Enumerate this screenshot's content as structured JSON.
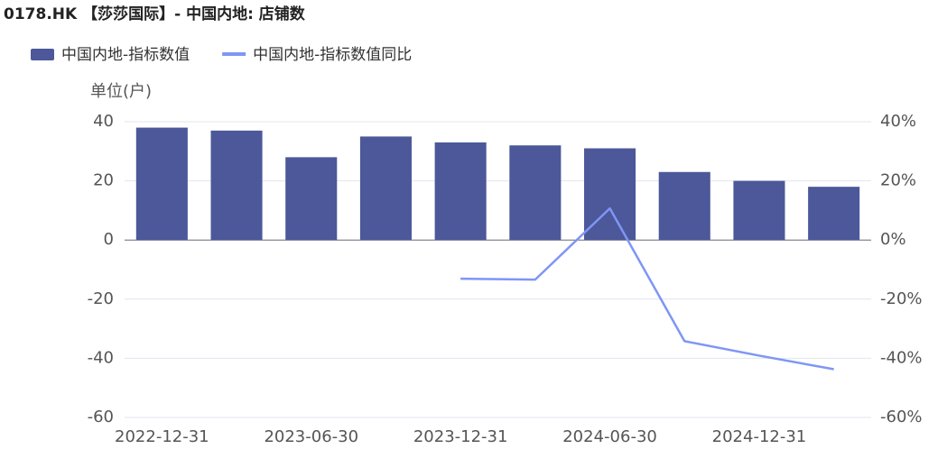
{
  "chart_data": {
    "type": "bar_line",
    "title": "0178.HK 【莎莎国际】- 中国内地: 店铺数",
    "y_label": "单位(户)",
    "categories": [
      "2022-12-31",
      null,
      "2023-06-30",
      null,
      "2023-12-31",
      null,
      "2024-06-30",
      null,
      "2024-12-31",
      null
    ],
    "series": [
      {
        "name": "中国内地-指标数值",
        "color": "#4c5899",
        "type": "bar",
        "values": [
          38,
          37,
          28,
          35,
          33,
          32,
          31,
          23,
          20,
          18
        ]
      },
      {
        "name": "中国内地-指标数值同比",
        "color": "#7f96f5",
        "type": "line",
        "axis": "y2",
        "values": [
          null,
          null,
          null,
          null,
          -13.1,
          -13.4,
          10.7,
          -34.2,
          -39.1,
          -43.7
        ]
      }
    ],
    "ylim": [
      -60,
      40
    ],
    "yticks": [
      -60,
      -40,
      -20,
      0,
      20,
      40
    ],
    "y2lim": [
      -60,
      40
    ],
    "y2ticks": [
      {
        "value": -60,
        "label": "-60%"
      },
      {
        "value": -40,
        "label": "-40%"
      },
      {
        "value": -20,
        "label": "-20%"
      },
      {
        "value": 0,
        "label": "0%"
      },
      {
        "value": 20,
        "label": "20%"
      },
      {
        "value": 40,
        "label": "40%"
      }
    ],
    "grid": true
  }
}
